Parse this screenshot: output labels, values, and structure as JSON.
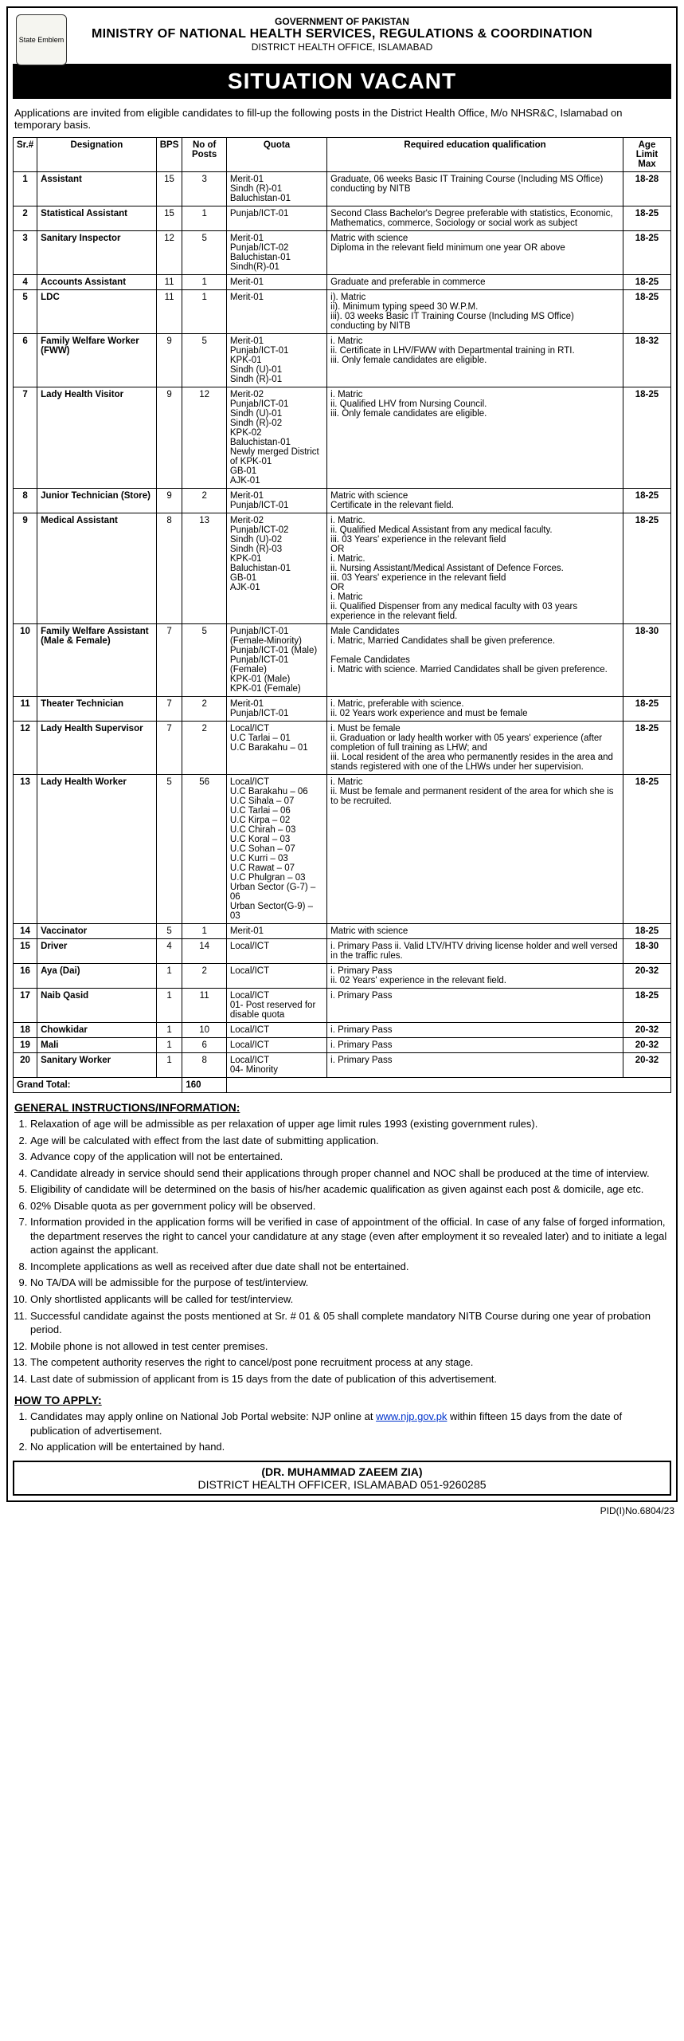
{
  "header": {
    "gov": "GOVERNMENT OF PAKISTAN",
    "ministry": "MINISTRY OF NATIONAL HEALTH SERVICES, REGULATIONS & COORDINATION",
    "office": "DISTRICT HEALTH OFFICE, ISLAMABAD",
    "banner": "SITUATION VACANT",
    "emblem_label": "State Emblem"
  },
  "intro": "Applications are invited from eligible candidates to fill-up the following posts in the District Health Office, M/o NHSR&C, Islamabad on temporary basis.",
  "columns": [
    "Sr.#",
    "Designation",
    "BPS",
    "No of Posts",
    "Quota",
    "Required education qualification",
    "Age Limit Max"
  ],
  "rows": [
    {
      "sr": "1",
      "desig": "Assistant",
      "bps": "15",
      "posts": "3",
      "quota": "Merit-01\nSindh (R)-01\nBaluchistan-01",
      "qual": "Graduate, 06 weeks Basic IT Training Course (Including MS Office) conducting by NITB",
      "age": "18-28"
    },
    {
      "sr": "2",
      "desig": "Statistical Assistant",
      "bps": "15",
      "posts": "1",
      "quota": "Punjab/ICT-01",
      "qual": "Second Class Bachelor's Degree preferable with statistics, Economic, Mathematics, commerce, Sociology or social work as subject",
      "age": "18-25"
    },
    {
      "sr": "3",
      "desig": "Sanitary Inspector",
      "bps": "12",
      "posts": "5",
      "quota": "Merit-01\nPunjab/ICT-02\nBaluchistan-01\nSindh(R)-01",
      "qual": "Matric with science\nDiploma in the relevant field minimum one year OR above",
      "age": "18-25"
    },
    {
      "sr": "4",
      "desig": "Accounts Assistant",
      "bps": "11",
      "posts": "1",
      "quota": "Merit-01",
      "qual": "Graduate and preferable in commerce",
      "age": "18-25"
    },
    {
      "sr": "5",
      "desig": "LDC",
      "bps": "11",
      "posts": "1",
      "quota": "Merit-01",
      "qual": "i). Matric\nii). Minimum typing speed 30 W.P.M.\niii). 03 weeks Basic IT Training Course (Including MS Office) conducting by NITB",
      "age": "18-25"
    },
    {
      "sr": "6",
      "desig": "Family Welfare Worker (FWW)",
      "bps": "9",
      "posts": "5",
      "quota": "Merit-01\nPunjab/ICT-01\nKPK-01\nSindh (U)-01\nSindh (R)-01",
      "qual": "i. Matric\nii. Certificate in LHV/FWW with Departmental training in RTI.\niii. Only female candidates are eligible.",
      "age": "18-32"
    },
    {
      "sr": "7",
      "desig": "Lady Health Visitor",
      "bps": "9",
      "posts": "12",
      "quota": "Merit-02\nPunjab/ICT-01\nSindh (U)-01\nSindh (R)-02\nKPK-02\nBaluchistan-01\nNewly merged District of KPK-01\nGB-01\nAJK-01",
      "qual": "i. Matric\nii. Qualified LHV from Nursing Council.\niii. Only female candidates are eligible.",
      "age": "18-25"
    },
    {
      "sr": "8",
      "desig": "Junior Technician (Store)",
      "bps": "9",
      "posts": "2",
      "quota": "Merit-01\nPunjab/ICT-01",
      "qual": "Matric with science\nCertificate in the relevant field.",
      "age": "18-25"
    },
    {
      "sr": "9",
      "desig": "Medical Assistant",
      "bps": "8",
      "posts": "13",
      "quota": "Merit-02\nPunjab/ICT-02\nSindh (U)-02\nSindh (R)-03\nKPK-01\nBaluchistan-01\nGB-01\nAJK-01",
      "qual": "i. Matric.\nii. Qualified Medical Assistant from any medical faculty.\niii. 03 Years' experience in the relevant field\nOR\ni. Matric.\nii. Nursing Assistant/Medical Assistant of Defence Forces.\niii. 03 Years' experience in the relevant field\nOR\ni. Matric\nii. Qualified Dispenser from any medical faculty with 03 years experience in the relevant field.",
      "age": "18-25"
    },
    {
      "sr": "10",
      "desig": "Family Welfare Assistant (Male & Female)",
      "bps": "7",
      "posts": "5",
      "quota": "Punjab/ICT-01 (Female-Minority)\nPunjab/ICT-01 (Male)\nPunjab/ICT-01 (Female)\nKPK-01 (Male)\nKPK-01 (Female)",
      "qual": "Male Candidates\ni. Matric, Married Candidates shall be given preference.\n\nFemale Candidates\ni. Matric with science. Married Candidates shall be given preference.",
      "age": "18-30"
    },
    {
      "sr": "11",
      "desig": "Theater Technician",
      "bps": "7",
      "posts": "2",
      "quota": "Merit-01\nPunjab/ICT-01",
      "qual": "i. Matric, preferable with science.\nii. 02 Years work experience and must be female",
      "age": "18-25"
    },
    {
      "sr": "12",
      "desig": "Lady Health Supervisor",
      "bps": "7",
      "posts": "2",
      "quota": "Local/ICT\nU.C Tarlai – 01\nU.C Barakahu – 01",
      "qual": "i. Must be female\nii. Graduation or lady health worker with 05 years' experience (after completion of full training as LHW; and\niii. Local resident of the area who permanently resides in the area and stands registered with one of the LHWs under her supervision.",
      "age": "18-25"
    },
    {
      "sr": "13",
      "desig": "Lady Health Worker",
      "bps": "5",
      "posts": "56",
      "quota": "Local/ICT\nU.C Barakahu – 06\nU.C Sihala – 07\nU.C Tarlai – 06\nU.C Kirpa – 02\nU.C Chirah – 03\nU.C Koral – 03\nU.C Sohan – 07\nU.C Kurri – 03\nU.C Rawat – 07\nU.C Phulgran – 03\nUrban Sector (G-7) – 06\nUrban Sector(G-9) – 03",
      "qual": "i. Matric\nii. Must be female and permanent resident of the area for which she is to be recruited.",
      "age": "18-25"
    },
    {
      "sr": "14",
      "desig": "Vaccinator",
      "bps": "5",
      "posts": "1",
      "quota": "Merit-01",
      "qual": "Matric with science",
      "age": "18-25"
    },
    {
      "sr": "15",
      "desig": "Driver",
      "bps": "4",
      "posts": "14",
      "quota": "Local/ICT",
      "qual": "i. Primary Pass ii. Valid LTV/HTV driving license holder and well versed in the traffic rules.",
      "age": "18-30"
    },
    {
      "sr": "16",
      "desig": "Aya (Dai)",
      "bps": "1",
      "posts": "2",
      "quota": "Local/ICT",
      "qual": "i. Primary Pass\nii. 02 Years' experience in the relevant field.",
      "age": "20-32"
    },
    {
      "sr": "17",
      "desig": "Naib Qasid",
      "bps": "1",
      "posts": "11",
      "quota": "Local/ICT\n01- Post reserved for disable quota",
      "qual": "i. Primary Pass",
      "age": "18-25"
    },
    {
      "sr": "18",
      "desig": "Chowkidar",
      "bps": "1",
      "posts": "10",
      "quota": "Local/ICT",
      "qual": "i. Primary Pass",
      "age": "20-32"
    },
    {
      "sr": "19",
      "desig": "Mali",
      "bps": "1",
      "posts": "6",
      "quota": "Local/ICT",
      "qual": "i. Primary Pass",
      "age": "20-32"
    },
    {
      "sr": "20",
      "desig": "Sanitary Worker",
      "bps": "1",
      "posts": "8",
      "quota": "Local/ICT\n04- Minority",
      "qual": "i. Primary Pass",
      "age": "20-32"
    }
  ],
  "total": {
    "label": "Grand Total:",
    "value": "160"
  },
  "instr_heading": "GENERAL INSTRUCTIONS/INFORMATION:",
  "instructions": [
    "Relaxation of age will be admissible as per relaxation of upper age limit rules 1993 (existing government rules).",
    "Age will be calculated with effect from the last date of submitting application.",
    "Advance copy of the application will not be entertained.",
    "Candidate already in service should send their applications through proper channel and NOC shall be produced at the time of interview.",
    "Eligibility of candidate will be determined on the basis of his/her academic qualification as given against each post & domicile, age etc.",
    "02% Disable quota as per government policy will be observed.",
    "Information provided in the application forms will be verified in case of appointment of the official. In case of any false of forged information, the department reserves the right to cancel your candidature at any stage (even after employment it so revealed later) and to initiate a legal action against the applicant.",
    "Incomplete applications as well as received after due date shall not be entertained.",
    "No TA/DA will be admissible for the purpose of test/interview.",
    "Only shortlisted applicants will be called for test/interview.",
    "Successful candidate against the posts mentioned at Sr. # 01 & 05 shall complete mandatory NITB Course during one year of probation period.",
    "Mobile phone is not allowed in test center premises.",
    "The competent authority reserves the right to cancel/post pone recruitment process at any stage.",
    "Last date of submission of applicant from is 15 days from the date of publication of this advertisement."
  ],
  "apply_heading": "HOW TO APPLY:",
  "apply": [
    "Candidates may apply online on National Job Portal website: NJP online at www.njp.gov.pk within fifteen 15 days from the date of publication of advertisement.",
    "No application will be entertained by hand."
  ],
  "signature": {
    "name": "(DR. MUHAMMAD ZAEEM ZIA)",
    "title": "DISTRICT HEALTH OFFICER, ISLAMABAD 051-9260285"
  },
  "pid": "PID(I)No.6804/23"
}
